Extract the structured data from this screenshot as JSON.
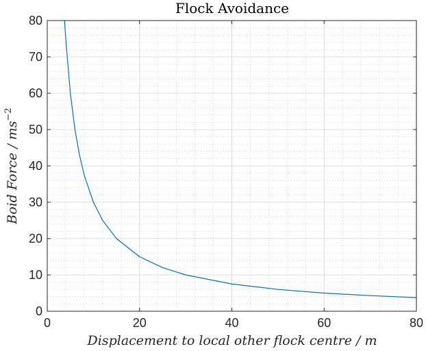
{
  "chart_data": {
    "type": "line",
    "title": "Flock Avoidance",
    "xlabel": "Displacement to local other flock centre / m",
    "ylabel": "Boid Force / ms",
    "ylabel_exponent": "−2",
    "xlim": [
      0,
      80
    ],
    "ylim": [
      0,
      80
    ],
    "xticks": [
      0,
      20,
      40,
      60,
      80
    ],
    "yticks": [
      0,
      10,
      20,
      30,
      40,
      50,
      60,
      70,
      80
    ],
    "grid": true,
    "minor_grid": true,
    "series": [
      {
        "color": "#0072bd",
        "x": [
          3.75,
          4,
          5,
          6,
          7,
          8,
          10,
          12,
          15,
          20,
          25,
          30,
          40,
          50,
          60,
          70,
          80
        ],
        "y": [
          80,
          75,
          60,
          50,
          42.9,
          37.5,
          30,
          25,
          20,
          15,
          12,
          10,
          7.5,
          6,
          5,
          4.3,
          3.75
        ]
      }
    ]
  }
}
